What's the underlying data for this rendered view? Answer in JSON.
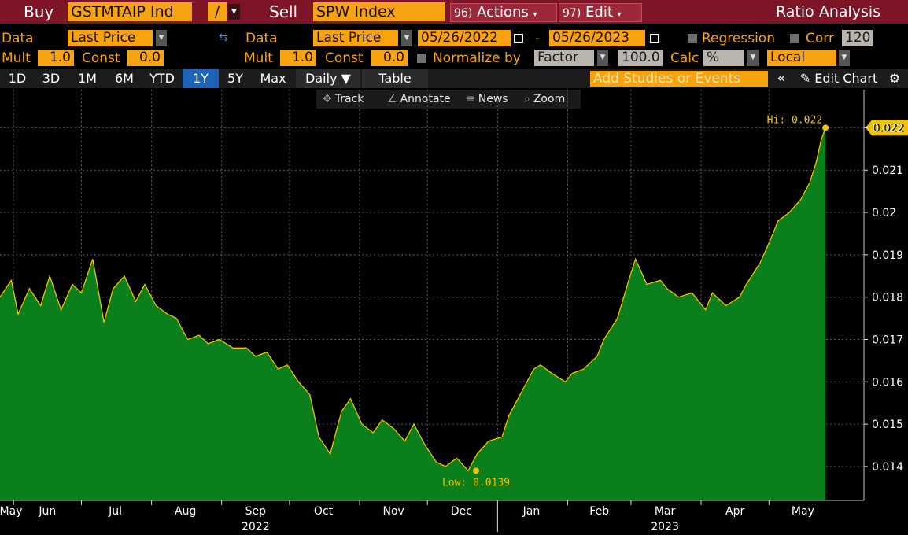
{
  "toolbar": {
    "buy_label": "Buy",
    "buy_security": "GSTMTAIP Ind",
    "operator": "/",
    "sell_label": "Sell",
    "sell_security": "SPW Index",
    "actions_num": "96)",
    "actions_label": "Actions",
    "edit_num": "97)",
    "edit_label": "Edit",
    "title": "Ratio Analysis"
  },
  "settings": {
    "data_label": "Data",
    "left_data_value": "Last Price",
    "right_data_value": "Last Price",
    "date_from": "05/26/2022",
    "date_sep": "-",
    "date_to": "05/26/2023",
    "regression_label": "Regression",
    "corr_label": "Corr",
    "corr_value": "120",
    "mult_label": "Mult",
    "left_mult": "1.0",
    "const_label": "Const",
    "left_const": "0.0",
    "right_mult": "1.0",
    "right_const": "0.0",
    "normalize_label": "Normalize by",
    "normalize_value": "Factor",
    "factor_value": "100.0",
    "calc_label": "Calc",
    "calc_value": "%",
    "currency_value": "Local"
  },
  "periods": [
    "1D",
    "3D",
    "1M",
    "6M",
    "YTD",
    "1Y",
    "5Y",
    "Max"
  ],
  "active_period": "1Y",
  "frequency": "Daily",
  "table_label": "Table",
  "add_studies_placeholder": "Add Studies or Events",
  "edit_chart_label": "Edit Chart",
  "tools": {
    "track": "Track",
    "annotate": "Annotate",
    "news": "News",
    "zoom": "Zoom"
  },
  "colors": {
    "title_bar": "#7d1526",
    "field": "#f7a20f",
    "area_fill": "#0b7f1b",
    "line": "#f2c200",
    "active_tab": "#1d64b8"
  },
  "chart_data": {
    "type": "area",
    "x_ticks": [
      "May",
      "Jun",
      "Jul",
      "Aug",
      "Sep",
      "Oct",
      "Nov",
      "Dec",
      "Jan",
      "Feb",
      "Mar",
      "Apr",
      "May"
    ],
    "year_labels": [
      "2022",
      "2023"
    ],
    "y_ticks": [
      "0.014",
      "0.015",
      "0.016",
      "0.017",
      "0.018",
      "0.019",
      "0.02",
      "0.021",
      "0.022"
    ],
    "ylim": [
      0.0132,
      0.0229
    ],
    "grid": true,
    "hi_annotation": "Hi: 0.022",
    "low_annotation": "Low: 0.0139",
    "last_value_label": "0.022",
    "series": [
      {
        "x": [
          "2022-05-26",
          "2022-05-31",
          "2022-06-03",
          "2022-06-08",
          "2022-06-13",
          "2022-06-17",
          "2022-06-22",
          "2022-06-27",
          "2022-07-01",
          "2022-07-06",
          "2022-07-11",
          "2022-07-15",
          "2022-07-20",
          "2022-07-25",
          "2022-07-29",
          "2022-08-03",
          "2022-08-08",
          "2022-08-12",
          "2022-08-17",
          "2022-08-22",
          "2022-08-26",
          "2022-08-31",
          "2022-09-06",
          "2022-09-12",
          "2022-09-16",
          "2022-09-21",
          "2022-09-26",
          "2022-09-30",
          "2022-10-05",
          "2022-10-10",
          "2022-10-14",
          "2022-10-19",
          "2022-10-24",
          "2022-10-28",
          "2022-11-02",
          "2022-11-07",
          "2022-11-11",
          "2022-11-16",
          "2022-11-21",
          "2022-11-25",
          "2022-11-30",
          "2022-12-05",
          "2022-12-09",
          "2022-12-14",
          "2022-12-19",
          "2022-12-23",
          "2022-12-28",
          "2023-01-03",
          "2023-01-06",
          "2023-01-11",
          "2023-01-17",
          "2023-01-20",
          "2023-01-25",
          "2023-01-31",
          "2023-02-03",
          "2023-02-08",
          "2023-02-14",
          "2023-02-17",
          "2023-02-23",
          "2023-02-28",
          "2023-03-03",
          "2023-03-08",
          "2023-03-14",
          "2023-03-17",
          "2023-03-22",
          "2023-03-28",
          "2023-04-03",
          "2023-04-06",
          "2023-04-12",
          "2023-04-18",
          "2023-04-21",
          "2023-04-27",
          "2023-05-02",
          "2023-05-05",
          "2023-05-10",
          "2023-05-15",
          "2023-05-19",
          "2023-05-22",
          "2023-05-24",
          "2023-05-26"
        ],
        "values": [
          0.018,
          0.0184,
          0.0176,
          0.0182,
          0.0178,
          0.0185,
          0.0177,
          0.0183,
          0.0181,
          0.0189,
          0.0174,
          0.0182,
          0.0185,
          0.0179,
          0.0183,
          0.0178,
          0.0176,
          0.0175,
          0.017,
          0.0171,
          0.0169,
          0.017,
          0.0168,
          0.0168,
          0.0166,
          0.0167,
          0.0163,
          0.0164,
          0.016,
          0.0157,
          0.0147,
          0.0143,
          0.0153,
          0.0156,
          0.015,
          0.0148,
          0.0151,
          0.0149,
          0.0146,
          0.015,
          0.0145,
          0.0141,
          0.014,
          0.0142,
          0.0139,
          0.0143,
          0.0146,
          0.0147,
          0.0152,
          0.0157,
          0.0163,
          0.0164,
          0.0162,
          0.016,
          0.0162,
          0.0163,
          0.0166,
          0.017,
          0.0175,
          0.0184,
          0.0189,
          0.0183,
          0.0184,
          0.0182,
          0.018,
          0.0181,
          0.0177,
          0.0181,
          0.0178,
          0.018,
          0.0183,
          0.0188,
          0.0194,
          0.0198,
          0.02,
          0.0203,
          0.0207,
          0.0212,
          0.0217,
          0.022
        ]
      }
    ]
  }
}
